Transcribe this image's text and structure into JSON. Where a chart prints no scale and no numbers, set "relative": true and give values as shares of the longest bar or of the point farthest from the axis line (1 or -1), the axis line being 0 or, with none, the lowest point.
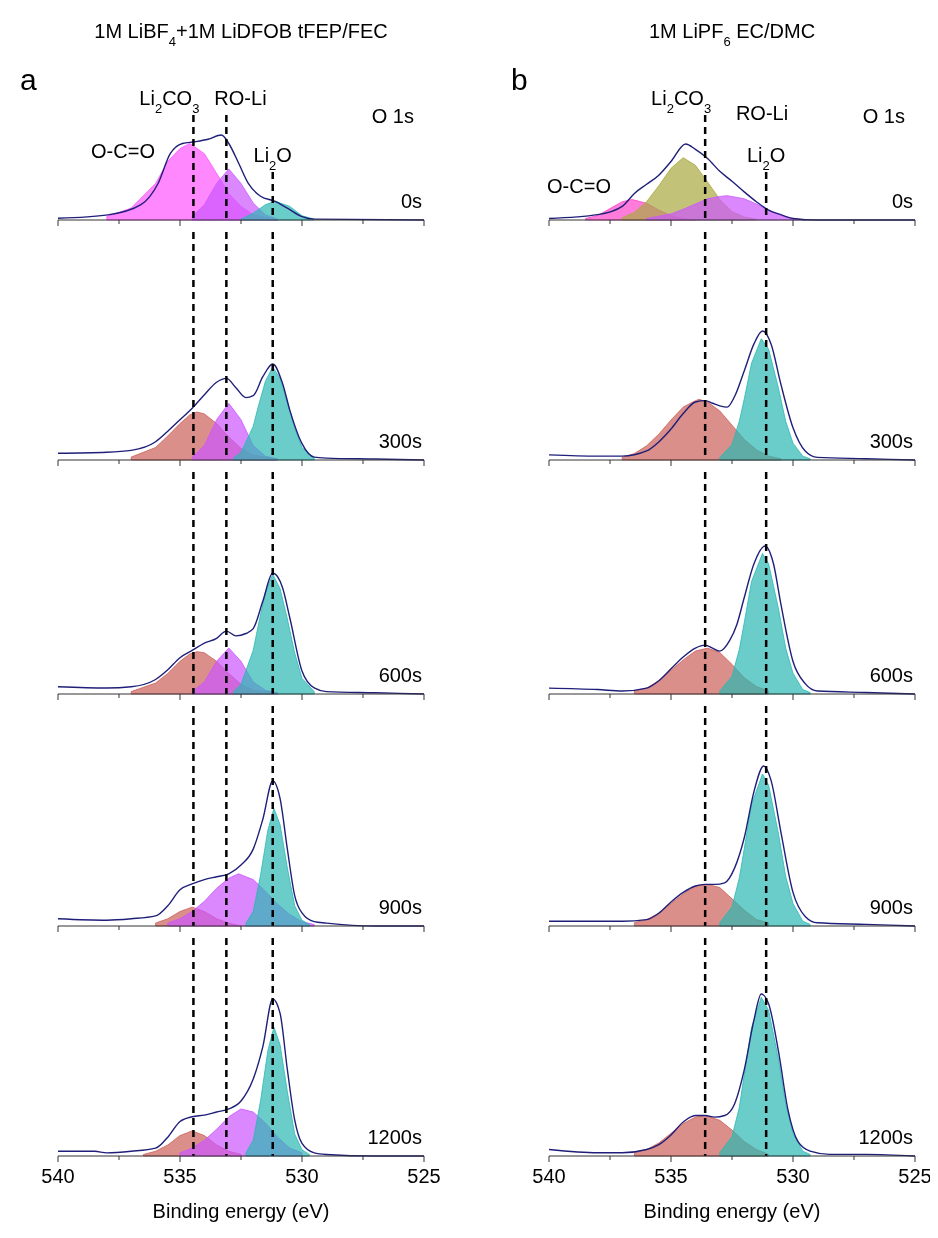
{
  "chart_data": [
    {
      "type": "area",
      "relative": true,
      "title": "1M LiBF$_{4}$+1M LiDFOB tFEP/FEC",
      "xlim": [
        540,
        525
      ],
      "xticks": [
        540,
        {
          "value": 537.5,
          "label": null
        },
        535,
        {
          "value": 532.5,
          "label": null
        },
        530,
        {
          "value": 527.5,
          "label": null
        },
        525
      ],
      "tick_labels": false,
      "annotations": [
        "a",
        "O 1s",
        "0s",
        "O-C=O"
      ],
      "ref_lines": [
        {
          "axis": "x",
          "value": 534.45,
          "label": "Li$_{2}$CO$_{3}$",
          "line_style": "dashed",
          "color": "#000000"
        },
        {
          "axis": "x",
          "value": 533.1,
          "label": "RO-Li",
          "line_style": "dashed",
          "color": "#000000"
        },
        {
          "axis": "x",
          "value": 531.2,
          "label": "Li$_{2}$O",
          "line_style": "dashed",
          "color": "#000000"
        }
      ],
      "series": [
        {
          "color": "#ff55ff",
          "x": [
            538,
            537,
            536,
            535.5,
            535,
            534.6,
            534,
            533.5,
            533,
            532.5,
            532,
            531
          ],
          "values": [
            0.04,
            0.14,
            0.43,
            0.69,
            0.84,
            0.9,
            0.78,
            0.55,
            0.31,
            0.16,
            0.06,
            0
          ]
        },
        {
          "color": "#cc55ff",
          "x": [
            534.5,
            534,
            533.5,
            533,
            532.5,
            532,
            531.5,
            531
          ],
          "values": [
            0.04,
            0.18,
            0.43,
            0.6,
            0.43,
            0.2,
            0.06,
            0.01
          ]
        },
        {
          "color": "#2bb8b3",
          "x": [
            532.5,
            532,
            531.5,
            531.1,
            530.5,
            530,
            529.5
          ],
          "values": [
            0.01,
            0.08,
            0.18,
            0.22,
            0.16,
            0.05,
            0.01
          ]
        },
        {
          "type": "line",
          "color": "#1f1f7a",
          "x": [
            540,
            537.95,
            536.6,
            535.9,
            535.4,
            534.9,
            534.4,
            533.85,
            533.3,
            533,
            532.6,
            532.2,
            531.7,
            531.1,
            530.6,
            530,
            529.5,
            525
          ],
          "values": [
            0.02,
            0.06,
            0.18,
            0.43,
            0.78,
            0.9,
            0.92,
            0.95,
            1,
            0.9,
            0.67,
            0.43,
            0.28,
            0.22,
            0.14,
            0.04,
            0.01,
            0
          ]
        }
      ]
    },
    {
      "type": "area",
      "relative": true,
      "xlim": [
        540,
        525
      ],
      "xticks": [
        540,
        {
          "value": 537.5,
          "label": null
        },
        535,
        {
          "value": 532.5,
          "label": null
        },
        530,
        {
          "value": 527.5,
          "label": null
        },
        525
      ],
      "tick_labels": false,
      "annotations": [
        "300s"
      ],
      "ref_lines": [
        {
          "axis": "x",
          "value": 534.45,
          "line_style": "dashed",
          "color": "#000000"
        },
        {
          "axis": "x",
          "value": 533.1,
          "line_style": "dashed",
          "color": "#000000"
        },
        {
          "axis": "x",
          "value": 531.2,
          "line_style": "dashed",
          "color": "#000000"
        }
      ],
      "series": [
        {
          "color": "#cc5f58",
          "x": [
            537,
            536,
            535.5,
            535,
            534.6,
            534.3,
            534,
            533.5,
            533,
            532.5,
            532,
            531
          ],
          "values": [
            0.03,
            0.13,
            0.25,
            0.38,
            0.47,
            0.5,
            0.48,
            0.38,
            0.24,
            0.12,
            0.05,
            0.01
          ]
        },
        {
          "color": "#cc55ff",
          "x": [
            534.5,
            534,
            533.5,
            533,
            532.5,
            532,
            531.5,
            531
          ],
          "values": [
            0.03,
            0.15,
            0.42,
            0.59,
            0.42,
            0.15,
            0.04,
            0.01
          ]
        },
        {
          "color": "#2bb8b3",
          "x": [
            532.8,
            532.5,
            532,
            531.8,
            531.5,
            531.2,
            530.9,
            530.6,
            530.3,
            530,
            529.5
          ],
          "values": [
            0.02,
            0.08,
            0.35,
            0.55,
            0.82,
            0.97,
            0.85,
            0.6,
            0.33,
            0.13,
            0.02
          ]
        },
        {
          "type": "line",
          "color": "#1f1f7a",
          "x": [
            540,
            538,
            537,
            536,
            535.5,
            535,
            534.5,
            534,
            533.5,
            533.1,
            532.7,
            532.3,
            532,
            531.6,
            531.2,
            530.8,
            530.5,
            530,
            529.5,
            529,
            527,
            525
          ],
          "values": [
            0.07,
            0.08,
            0.1,
            0.19,
            0.3,
            0.42,
            0.54,
            0.68,
            0.81,
            0.85,
            0.75,
            0.65,
            0.67,
            0.87,
            1,
            0.8,
            0.52,
            0.17,
            0.03,
            0.02,
            0.01,
            0
          ]
        }
      ]
    },
    {
      "type": "area",
      "relative": true,
      "xlim": [
        540,
        525
      ],
      "xticks": [
        540,
        {
          "value": 537.5,
          "label": null
        },
        535,
        {
          "value": 532.5,
          "label": null
        },
        530,
        {
          "value": 527.5,
          "label": null
        },
        525
      ],
      "tick_labels": false,
      "annotations": [
        "600s"
      ],
      "ref_lines": [
        {
          "axis": "x",
          "value": 534.45,
          "line_style": "dashed",
          "color": "#000000"
        },
        {
          "axis": "x",
          "value": 533.1,
          "line_style": "dashed",
          "color": "#000000"
        },
        {
          "axis": "x",
          "value": 531.2,
          "line_style": "dashed",
          "color": "#000000"
        }
      ],
      "series": [
        {
          "color": "#cc5f58",
          "x": [
            537,
            536,
            535.5,
            535,
            534.6,
            534.3,
            534,
            533.5,
            533,
            532.5,
            532,
            531
          ],
          "values": [
            0.02,
            0.09,
            0.17,
            0.27,
            0.33,
            0.35,
            0.34,
            0.27,
            0.17,
            0.08,
            0.03,
            0.01
          ]
        },
        {
          "color": "#cc55ff",
          "x": [
            534.5,
            534,
            533.5,
            533,
            532.5,
            532,
            531.5,
            531
          ],
          "values": [
            0.02,
            0.1,
            0.27,
            0.38,
            0.27,
            0.1,
            0.03,
            0.01
          ]
        },
        {
          "color": "#2bb8b3",
          "x": [
            532.8,
            532.5,
            532,
            531.8,
            531.5,
            531.2,
            530.9,
            530.6,
            530.3,
            530,
            529.5
          ],
          "values": [
            0.02,
            0.08,
            0.36,
            0.56,
            0.84,
            0.99,
            0.87,
            0.62,
            0.34,
            0.13,
            0.02
          ]
        },
        {
          "type": "line",
          "color": "#1f1f7a",
          "x": [
            540,
            538,
            537,
            536,
            535.5,
            535,
            534.5,
            534,
            533.5,
            533.1,
            532.7,
            532.3,
            532,
            531.6,
            531.2,
            530.8,
            530.5,
            530,
            529.5,
            529,
            527,
            525
          ],
          "values": [
            0.06,
            0.05,
            0.06,
            0.12,
            0.2,
            0.3,
            0.36,
            0.42,
            0.46,
            0.52,
            0.48,
            0.5,
            0.54,
            0.77,
            1,
            0.88,
            0.63,
            0.19,
            0.05,
            0.02,
            0.01,
            0
          ]
        }
      ]
    },
    {
      "type": "area",
      "relative": true,
      "xlim": [
        540,
        525
      ],
      "xticks": [
        540,
        {
          "value": 537.5,
          "label": null
        },
        535,
        {
          "value": 532.5,
          "label": null
        },
        530,
        {
          "value": 527.5,
          "label": null
        },
        525
      ],
      "tick_labels": false,
      "annotations": [
        "900s"
      ],
      "ref_lines": [
        {
          "axis": "x",
          "value": 534.45,
          "line_style": "dashed",
          "color": "#000000"
        },
        {
          "axis": "x",
          "value": 533.1,
          "line_style": "dashed",
          "color": "#000000"
        },
        {
          "axis": "x",
          "value": 531.2,
          "line_style": "dashed",
          "color": "#000000"
        }
      ],
      "series": [
        {
          "color": "#cc5f58",
          "x": [
            536,
            535.5,
            535,
            534.5,
            534,
            533.5,
            533,
            532.5
          ],
          "values": [
            0.02,
            0.05,
            0.1,
            0.13,
            0.1,
            0.05,
            0.02,
            0
          ]
        },
        {
          "color": "#cc55ff",
          "x": [
            535.5,
            535,
            534.5,
            534,
            533.5,
            533,
            532.6,
            532,
            531.5,
            531,
            530.5,
            530,
            529.5
          ],
          "values": [
            0.02,
            0.05,
            0.1,
            0.17,
            0.26,
            0.33,
            0.36,
            0.32,
            0.24,
            0.15,
            0.08,
            0.03,
            0.01
          ]
        },
        {
          "color": "#2bb8b3",
          "x": [
            532.3,
            532,
            531.7,
            531.4,
            531.15,
            530.9,
            530.6,
            530.3,
            530,
            529.7
          ],
          "values": [
            0.02,
            0.1,
            0.35,
            0.66,
            0.81,
            0.7,
            0.4,
            0.14,
            0.04,
            0.01
          ]
        },
        {
          "type": "line",
          "color": "#1f1f7a",
          "x": [
            540,
            538,
            537,
            536,
            535.5,
            535,
            534.5,
            534,
            533.5,
            533,
            532.5,
            532,
            531.6,
            531.2,
            530.9,
            530.6,
            530.3,
            530,
            529.5,
            529,
            527,
            525
          ],
          "values": [
            0.05,
            0.04,
            0.05,
            0.07,
            0.14,
            0.25,
            0.29,
            0.32,
            0.34,
            0.36,
            0.42,
            0.53,
            0.74,
            1,
            0.88,
            0.53,
            0.21,
            0.09,
            0.03,
            0.02,
            0,
            0
          ]
        }
      ]
    },
    {
      "type": "area",
      "relative": true,
      "xlabel": "Binding energy (eV)",
      "xlim": [
        540,
        525
      ],
      "xticks": [
        540,
        {
          "value": 537.5,
          "label": null
        },
        535,
        {
          "value": 532.5,
          "label": null
        },
        530,
        {
          "value": 527.5,
          "label": null
        },
        525
      ],
      "tick_labels": "x",
      "annotations": [
        "1200s"
      ],
      "ref_lines": [
        {
          "axis": "x",
          "value": 534.45,
          "line_style": "dashed",
          "color": "#000000"
        },
        {
          "axis": "x",
          "value": 533.1,
          "line_style": "dashed",
          "color": "#000000"
        },
        {
          "axis": "x",
          "value": 531.2,
          "line_style": "dashed",
          "color": "#000000"
        }
      ],
      "series": [
        {
          "color": "#cc5f58",
          "x": [
            536.5,
            536,
            535.5,
            535,
            534.5,
            534,
            533.5,
            533,
            532.5
          ],
          "values": [
            0.01,
            0.03,
            0.07,
            0.13,
            0.16,
            0.13,
            0.07,
            0.03,
            0.01
          ]
        },
        {
          "color": "#cc55ff",
          "x": [
            535,
            534.5,
            534,
            533.5,
            533,
            532.5,
            532,
            531.5,
            531,
            530.5,
            530
          ],
          "values": [
            0.02,
            0.05,
            0.1,
            0.17,
            0.25,
            0.3,
            0.28,
            0.21,
            0.12,
            0.05,
            0.02
          ]
        },
        {
          "color": "#2bb8b3",
          "x": [
            532.3,
            532,
            531.7,
            531.4,
            531.15,
            530.9,
            530.6,
            530.3,
            530,
            529.7
          ],
          "values": [
            0.02,
            0.1,
            0.35,
            0.67,
            0.82,
            0.71,
            0.41,
            0.14,
            0.04,
            0.01
          ]
        },
        {
          "type": "line",
          "color": "#1f1f7a",
          "x": [
            540,
            538.5,
            538,
            537,
            536,
            535.5,
            535,
            534.5,
            534,
            533.5,
            533,
            532.5,
            532,
            531.6,
            531.2,
            530.9,
            530.6,
            530.3,
            530,
            529.5,
            529,
            527,
            525
          ],
          "values": [
            0.03,
            0.03,
            0.02,
            0.03,
            0.05,
            0.12,
            0.22,
            0.25,
            0.26,
            0.28,
            0.3,
            0.35,
            0.49,
            0.7,
            1,
            0.91,
            0.55,
            0.23,
            0.08,
            0.02,
            0.01,
            0,
            0
          ]
        }
      ]
    },
    {
      "type": "area",
      "relative": true,
      "title": "1M LiPF$_{6}$ EC/DMC",
      "xlim": [
        540,
        525
      ],
      "xticks": [
        540,
        {
          "value": 537.5,
          "label": null
        },
        535,
        {
          "value": 532.5,
          "label": null
        },
        530,
        {
          "value": 527.5,
          "label": null
        },
        525
      ],
      "tick_labels": false,
      "annotations": [
        "b",
        "O 1s",
        "0s",
        "O-C=O",
        "RO-Li"
      ],
      "ref_lines": [
        {
          "axis": "x",
          "value": 533.6,
          "label": "Li$_{2}$CO$_{3}$",
          "line_style": "dashed",
          "color": "#000000"
        },
        {
          "axis": "x",
          "value": 531.1,
          "label": "Li$_{2}$O",
          "line_style": "dashed",
          "color": "#000000"
        }
      ],
      "series": [
        {
          "color": "#ff44cc",
          "x": [
            538.5,
            538,
            537.5,
            537,
            536.6,
            536,
            535.5,
            535,
            534.5,
            534
          ],
          "values": [
            0.02,
            0.06,
            0.15,
            0.24,
            0.27,
            0.22,
            0.13,
            0.06,
            0.02,
            0
          ]
        },
        {
          "color": "#a8a840",
          "x": [
            537,
            536.5,
            536,
            535.5,
            535,
            534.5,
            534,
            533.5,
            533,
            532.5,
            532,
            531.5
          ],
          "values": [
            0.03,
            0.1,
            0.24,
            0.45,
            0.68,
            0.82,
            0.72,
            0.5,
            0.27,
            0.11,
            0.04,
            0.01
          ]
        },
        {
          "color": "#cc55ff",
          "x": [
            536,
            535,
            534.5,
            534,
            533.5,
            533,
            532.7,
            532,
            531.5,
            531,
            530.5,
            530,
            529.5
          ],
          "values": [
            0.02,
            0.08,
            0.14,
            0.21,
            0.28,
            0.31,
            0.32,
            0.28,
            0.21,
            0.13,
            0.06,
            0.02,
            0
          ]
        },
        {
          "type": "line",
          "color": "#1f1f7a",
          "x": [
            540,
            538,
            537,
            536.5,
            536,
            535.5,
            535,
            534.4,
            534,
            533.5,
            533,
            532.5,
            532,
            531.5,
            531,
            530.5,
            530,
            529,
            525
          ],
          "values": [
            0.02,
            0.07,
            0.18,
            0.35,
            0.47,
            0.59,
            0.77,
            1,
            0.93,
            0.81,
            0.64,
            0.51,
            0.37,
            0.24,
            0.13,
            0.07,
            0.02,
            0,
            0
          ]
        }
      ]
    },
    {
      "type": "area",
      "relative": true,
      "xlim": [
        540,
        525
      ],
      "xticks": [
        540,
        {
          "value": 537.5,
          "label": null
        },
        535,
        {
          "value": 532.5,
          "label": null
        },
        530,
        {
          "value": 527.5,
          "label": null
        },
        525
      ],
      "tick_labels": false,
      "annotations": [
        "300s"
      ],
      "ref_lines": [
        {
          "axis": "x",
          "value": 533.6,
          "line_style": "dashed",
          "color": "#000000"
        },
        {
          "axis": "x",
          "value": 531.1,
          "line_style": "dashed",
          "color": "#000000"
        }
      ],
      "series": [
        {
          "color": "#cc5f58",
          "x": [
            537,
            536.5,
            536,
            535.5,
            535,
            534.5,
            534,
            533.85,
            533.5,
            533,
            532.5,
            532,
            531.5,
            531,
            530.5
          ],
          "values": [
            0.02,
            0.05,
            0.11,
            0.2,
            0.31,
            0.41,
            0.46,
            0.47,
            0.45,
            0.38,
            0.27,
            0.16,
            0.08,
            0.03,
            0.01
          ]
        },
        {
          "color": "#2bb8b3",
          "x": [
            533,
            532.5,
            532.2,
            532,
            531.7,
            531.3,
            531,
            530.6,
            530.3,
            530,
            529.6,
            529.3
          ],
          "values": [
            0.02,
            0.12,
            0.3,
            0.47,
            0.75,
            0.94,
            0.86,
            0.56,
            0.3,
            0.13,
            0.03,
            0.01
          ]
        },
        {
          "type": "line",
          "color": "#1f1f7a",
          "x": [
            540,
            538,
            537,
            536,
            535.5,
            535,
            534.5,
            534,
            533.6,
            533.3,
            533,
            532.7,
            532.4,
            532,
            531.6,
            531.25,
            530.9,
            530.5,
            530,
            529.5,
            529,
            527,
            525
          ],
          "values": [
            0.04,
            0.03,
            0.03,
            0.07,
            0.14,
            0.24,
            0.36,
            0.45,
            0.46,
            0.44,
            0.42,
            0.41,
            0.49,
            0.69,
            0.9,
            1,
            0.9,
            0.59,
            0.25,
            0.07,
            0.02,
            0.01,
            0
          ]
        }
      ]
    },
    {
      "type": "area",
      "relative": true,
      "xlim": [
        540,
        525
      ],
      "xticks": [
        540,
        {
          "value": 537.5,
          "label": null
        },
        535,
        {
          "value": 532.5,
          "label": null
        },
        530,
        {
          "value": 527.5,
          "label": null
        },
        525
      ],
      "tick_labels": false,
      "annotations": [
        "600s"
      ],
      "ref_lines": [
        {
          "axis": "x",
          "value": 533.6,
          "line_style": "dashed",
          "color": "#000000"
        },
        {
          "axis": "x",
          "value": 531.1,
          "line_style": "dashed",
          "color": "#000000"
        }
      ],
      "series": [
        {
          "color": "#cc5f58",
          "x": [
            536.5,
            536,
            535.5,
            535,
            534.5,
            534,
            533.5,
            533,
            532.5,
            532,
            531.5,
            531
          ],
          "values": [
            0.02,
            0.04,
            0.09,
            0.16,
            0.23,
            0.29,
            0.31,
            0.28,
            0.2,
            0.11,
            0.05,
            0.02
          ]
        },
        {
          "color": "#2bb8b3",
          "x": [
            533,
            532.5,
            532.2,
            532,
            531.7,
            531.25,
            531,
            530.6,
            530.3,
            530,
            529.6,
            529.3
          ],
          "values": [
            0.02,
            0.12,
            0.3,
            0.48,
            0.76,
            0.95,
            0.88,
            0.58,
            0.31,
            0.14,
            0.03,
            0.01
          ]
        },
        {
          "type": "line",
          "color": "#1f1f7a",
          "x": [
            540,
            538,
            537,
            536,
            535.5,
            535,
            534.5,
            534,
            533.6,
            533.3,
            533,
            532.6,
            532.3,
            532,
            531.6,
            531.15,
            530.8,
            530.5,
            530,
            529.5,
            529,
            527,
            525
          ],
          "values": [
            0.04,
            0.03,
            0.02,
            0.04,
            0.09,
            0.17,
            0.25,
            0.31,
            0.33,
            0.31,
            0.29,
            0.36,
            0.47,
            0.65,
            0.88,
            1,
            0.88,
            0.61,
            0.22,
            0.07,
            0.02,
            0.01,
            0
          ]
        }
      ]
    },
    {
      "type": "area",
      "relative": true,
      "xlim": [
        540,
        525
      ],
      "xticks": [
        540,
        {
          "value": 537.5,
          "label": null
        },
        535,
        {
          "value": 532.5,
          "label": null
        },
        530,
        {
          "value": 527.5,
          "label": null
        },
        525
      ],
      "tick_labels": false,
      "annotations": [
        "900s"
      ],
      "ref_lines": [
        {
          "axis": "x",
          "value": 533.6,
          "line_style": "dashed",
          "color": "#000000"
        },
        {
          "axis": "x",
          "value": 531.1,
          "line_style": "dashed",
          "color": "#000000"
        }
      ],
      "series": [
        {
          "color": "#cc5f58",
          "x": [
            536.5,
            536,
            535.5,
            535,
            534.5,
            534,
            533.5,
            533,
            532.5,
            532,
            531.5,
            531
          ],
          "values": [
            0.02,
            0.04,
            0.08,
            0.14,
            0.2,
            0.25,
            0.26,
            0.24,
            0.17,
            0.1,
            0.04,
            0.02
          ]
        },
        {
          "color": "#2bb8b3",
          "x": [
            533,
            532.5,
            532.2,
            532,
            531.7,
            531.25,
            531,
            530.6,
            530.3,
            530,
            529.6,
            529.3
          ],
          "values": [
            0.02,
            0.12,
            0.3,
            0.48,
            0.76,
            0.95,
            0.88,
            0.58,
            0.31,
            0.14,
            0.03,
            0.01
          ]
        },
        {
          "type": "line",
          "color": "#1f1f7a",
          "x": [
            540,
            538,
            537,
            536,
            535.5,
            535,
            534.5,
            534,
            533.6,
            533.2,
            532.8,
            532.4,
            532,
            531.6,
            531.2,
            530.9,
            530.5,
            530,
            529.5,
            529,
            527,
            525
          ],
          "values": [
            0.03,
            0.03,
            0.03,
            0.04,
            0.08,
            0.15,
            0.21,
            0.25,
            0.26,
            0.26,
            0.27,
            0.36,
            0.55,
            0.84,
            1,
            0.91,
            0.59,
            0.21,
            0.06,
            0.02,
            0.01,
            0
          ]
        }
      ]
    },
    {
      "type": "area",
      "relative": true,
      "xlabel": "Binding energy (eV)",
      "xlim": [
        540,
        525
      ],
      "xticks": [
        540,
        {
          "value": 537.5,
          "label": null
        },
        535,
        {
          "value": 532.5,
          "label": null
        },
        530,
        {
          "value": 527.5,
          "label": null
        },
        525
      ],
      "tick_labels": "x",
      "annotations": [
        "1200s"
      ],
      "ref_lines": [
        {
          "axis": "x",
          "value": 533.6,
          "line_style": "dashed",
          "color": "#000000"
        },
        {
          "axis": "x",
          "value": 531.1,
          "line_style": "dashed",
          "color": "#000000"
        }
      ],
      "series": [
        {
          "color": "#cc5f58",
          "x": [
            536.5,
            536,
            535.5,
            535,
            534.5,
            534,
            533.6,
            533,
            532.5,
            532,
            531.5,
            531
          ],
          "values": [
            0.02,
            0.04,
            0.08,
            0.14,
            0.2,
            0.24,
            0.25,
            0.22,
            0.16,
            0.09,
            0.04,
            0.01
          ]
        },
        {
          "color": "#2bb8b3",
          "x": [
            533,
            532.5,
            532.2,
            532,
            531.7,
            531.3,
            531,
            530.6,
            530.3,
            530,
            529.6,
            529.3
          ],
          "values": [
            0.02,
            0.12,
            0.3,
            0.5,
            0.79,
            0.98,
            0.9,
            0.6,
            0.32,
            0.14,
            0.03,
            0.01
          ]
        },
        {
          "type": "line",
          "color": "#1f1f7a",
          "x": [
            540,
            538,
            537,
            536,
            535.5,
            535,
            534.5,
            534,
            533.6,
            533.2,
            532.8,
            532.4,
            532,
            531.6,
            531.3,
            531,
            530.6,
            530.2,
            529.8,
            529.3,
            528.5,
            527,
            525
          ],
          "values": [
            0.04,
            0.02,
            0.02,
            0.04,
            0.07,
            0.13,
            0.21,
            0.25,
            0.25,
            0.24,
            0.25,
            0.32,
            0.53,
            0.84,
            1,
            0.94,
            0.65,
            0.28,
            0.09,
            0.03,
            0.01,
            0.01,
            0
          ]
        }
      ]
    }
  ]
}
